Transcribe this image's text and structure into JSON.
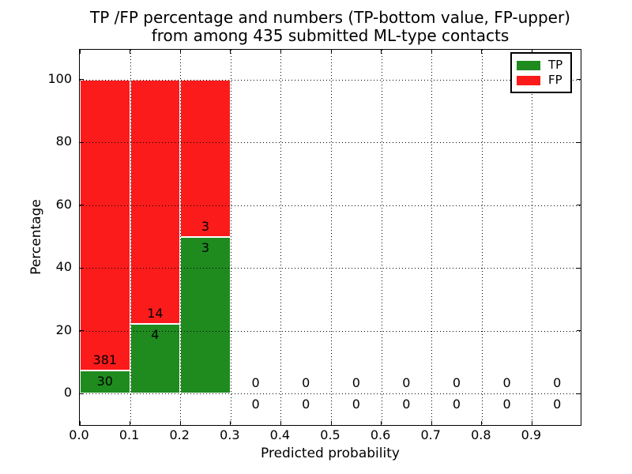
{
  "chart_data": {
    "type": "bar",
    "stacked": true,
    "title_lines": [
      "TP /FP percentage and numbers (TP-bottom value, FP-upper)",
      "from among 435 submitted ML-type contacts"
    ],
    "title": "TP /FP percentage and numbers (TP-bottom value, FP-upper)\nfrom among 435 submitted ML-type contacts",
    "xlabel": "Predicted probability",
    "ylabel": "Percentage",
    "total_contacts": 435,
    "xlim": [
      0.0,
      1.0
    ],
    "ylim": [
      -10.5,
      109.5
    ],
    "xticks": [
      0.0,
      0.1,
      0.2,
      0.3,
      0.4,
      0.5,
      0.6,
      0.7,
      0.8,
      0.9
    ],
    "xtick_labels": [
      "0.0",
      "0.1",
      "0.2",
      "0.3",
      "0.4",
      "0.5",
      "0.6",
      "0.7",
      "0.8",
      "0.9"
    ],
    "yticks": [
      0,
      20,
      40,
      60,
      80,
      100
    ],
    "ytick_labels": [
      "0",
      "20",
      "40",
      "60",
      "80",
      "100"
    ],
    "grid": true,
    "grid_style": "dotted",
    "bin_edges": [
      0.0,
      0.1,
      0.2,
      0.3,
      0.4,
      0.5,
      0.6,
      0.7,
      0.8,
      0.9,
      1.0
    ],
    "categories": [
      "0.0-0.1",
      "0.1-0.2",
      "0.2-0.3",
      "0.3-0.4",
      "0.4-0.5",
      "0.5-0.6",
      "0.6-0.7",
      "0.7-0.8",
      "0.8-0.9",
      "0.9-1.0"
    ],
    "series": [
      {
        "name": "TP",
        "color": "#1f8b1f",
        "counts": [
          30,
          4,
          3,
          0,
          0,
          0,
          0,
          0,
          0,
          0
        ],
        "percentages": [
          7.3,
          22.2,
          50.0,
          0,
          0,
          0,
          0,
          0,
          0,
          0
        ]
      },
      {
        "name": "FP",
        "color": "#fb1b1b",
        "counts": [
          381,
          14,
          3,
          0,
          0,
          0,
          0,
          0,
          0,
          0
        ],
        "percentages": [
          92.7,
          77.8,
          50.0,
          0,
          0,
          0,
          0,
          0,
          0,
          0
        ]
      }
    ],
    "legend": {
      "position": "upper right",
      "entries": [
        {
          "label": "TP",
          "color": "#1f8b1f"
        },
        {
          "label": "FP",
          "color": "#fb1b1b"
        }
      ]
    }
  }
}
